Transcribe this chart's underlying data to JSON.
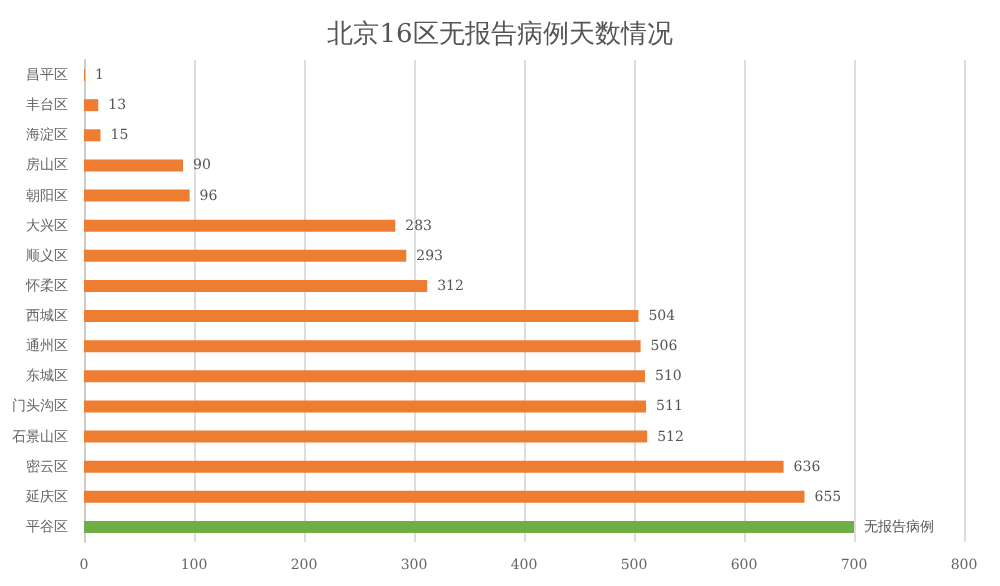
{
  "chart_data": {
    "type": "bar",
    "orientation": "horizontal",
    "title": "北京16区无报告病例天数情况",
    "categories": [
      "昌平区",
      "丰台区",
      "海淀区",
      "房山区",
      "朝阳区",
      "大兴区",
      "顺义区",
      "怀柔区",
      "西城区",
      "通州区",
      "东城区",
      "门头沟区",
      "石景山区",
      "密云区",
      "延庆区",
      "平谷区"
    ],
    "values": [
      1,
      13,
      15,
      90,
      96,
      283,
      293,
      312,
      504,
      506,
      510,
      511,
      512,
      636,
      655,
      700
    ],
    "colors": [
      "#ed7d31",
      "#ed7d31",
      "#ed7d31",
      "#ed7d31",
      "#ed7d31",
      "#ed7d31",
      "#ed7d31",
      "#ed7d31",
      "#ed7d31",
      "#ed7d31",
      "#ed7d31",
      "#ed7d31",
      "#ed7d31",
      "#ed7d31",
      "#ed7d31",
      "#70ad47"
    ],
    "value_labels": [
      "1",
      "13",
      "15",
      "90",
      "96",
      "283",
      "293",
      "312",
      "504",
      "506",
      "510",
      "511",
      "512",
      "636",
      "655",
      "无报告病例"
    ],
    "xlim": [
      0,
      800
    ],
    "xticks": [
      0,
      100,
      200,
      300,
      400,
      500,
      600,
      700,
      800
    ],
    "grid": "x"
  }
}
